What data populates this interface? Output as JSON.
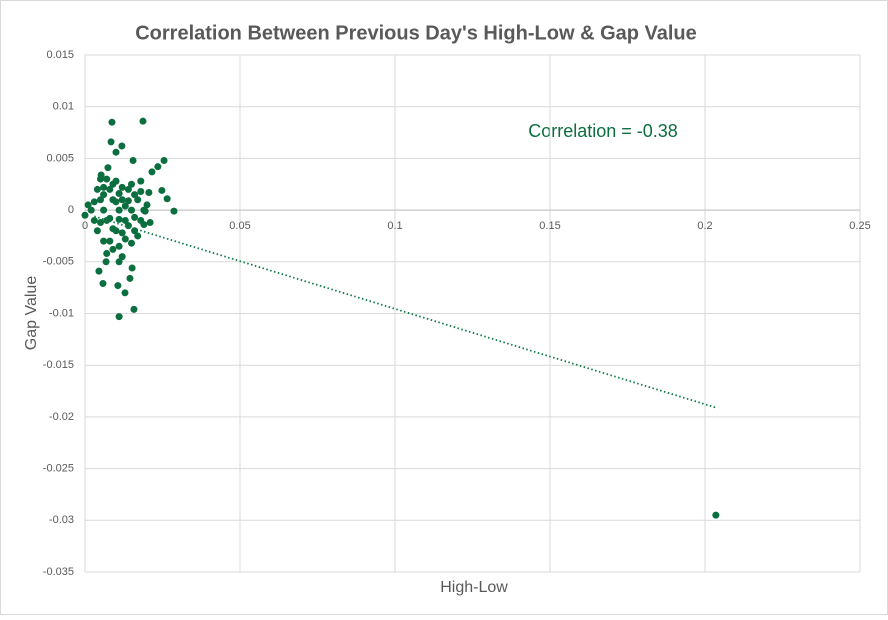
{
  "chart_data": {
    "type": "scatter",
    "title": "Correlation Between Previous Day's High-Low & Gap Value",
    "xlabel": "High-Low",
    "ylabel": "Gap Value",
    "annotation": "Correlation = -0.38",
    "color": "#0b6e3f",
    "grid": true,
    "xlim": [
      0,
      0.25
    ],
    "xticks": [
      0,
      0.05,
      0.1,
      0.15,
      0.2,
      0.25
    ],
    "ylim": [
      -0.035,
      0.015
    ],
    "yticks": [
      0.015,
      0.01,
      0.005,
      0,
      -0.005,
      -0.01,
      -0.015,
      -0.02,
      -0.025,
      -0.03,
      -0.035
    ],
    "x": [
      0.0087,
      0.0187,
      0.0084,
      0.0119,
      0.01,
      0.0255,
      0.0155,
      0.0074,
      0.0052,
      0.0235,
      0.0216,
      0.0248,
      0.0265,
      0.0287,
      0.0206,
      0.0194,
      0.0045,
      0.0058,
      0.0068,
      0.011,
      0.0152,
      0.0145,
      0.0129,
      0.011,
      0.0158,
      0.0106,
      0.2035,
      0.004,
      0.005,
      0.006,
      0.007,
      0.008,
      0.009,
      0.01,
      0.011,
      0.012,
      0.013,
      0.014,
      0.015,
      0.016,
      0.017,
      0.018,
      0.019,
      0.003,
      0.004,
      0.005,
      0.006,
      0.007,
      0.008,
      0.009,
      0.01,
      0.011,
      0.012,
      0.013,
      0.014,
      0.015,
      0.016,
      0.017,
      0.018,
      0.02,
      0.021,
      0.002,
      0.003,
      0.006,
      0.008,
      0.009,
      0.01,
      0.011,
      0.012,
      0.013,
      0.007,
      0.009,
      0.012,
      0.006,
      0.015,
      0.018,
      0,
      0.001,
      0.005,
      0.014,
      0.016,
      0.019,
      0.011
    ],
    "y": [
      0.0085,
      0.0086,
      0.0066,
      0.0062,
      0.0056,
      0.0048,
      0.0048,
      0.0041,
      0.0034,
      0.0042,
      0.0037,
      0.0019,
      0.0011,
      -0.0001,
      0.0017,
      -0.0001,
      -0.0059,
      -0.0071,
      -0.005,
      -0.005,
      -0.0056,
      -0.0066,
      -0.008,
      -0.0103,
      -0.0096,
      -0.0073,
      -0.0295,
      0.002,
      0.001,
      0,
      -0.001,
      0.002,
      0.001,
      -0.002,
      0,
      0.001,
      -0.001,
      0.002,
      0,
      -0.002,
      0.001,
      -0.001,
      0,
      -0.001,
      -0.002,
      0.003,
      -0.003,
      0.003,
      -0.003,
      0.0025,
      0.0028,
      -0.0035,
      0.0022,
      -0.0028,
      -0.0015,
      0.0025,
      0.0015,
      -0.0025,
      0.0018,
      0.0005,
      -0.0012,
      0,
      0.0008,
      0.0015,
      -0.0008,
      -0.0018,
      0.0008,
      0.0016,
      -0.0022,
      0.0004,
      -0.0042,
      -0.0038,
      -0.0045,
      0.0022,
      -0.0032,
      0.0028,
      -0.0005,
      0.0005,
      -0.0012,
      0.0009,
      -0.0007,
      -0.0014,
      -0.0009
    ],
    "trendline": {
      "color": "#0e7a47",
      "x": [
        0.003,
        0.2035
      ],
      "y": [
        -0.0006,
        -0.0191
      ]
    }
  }
}
